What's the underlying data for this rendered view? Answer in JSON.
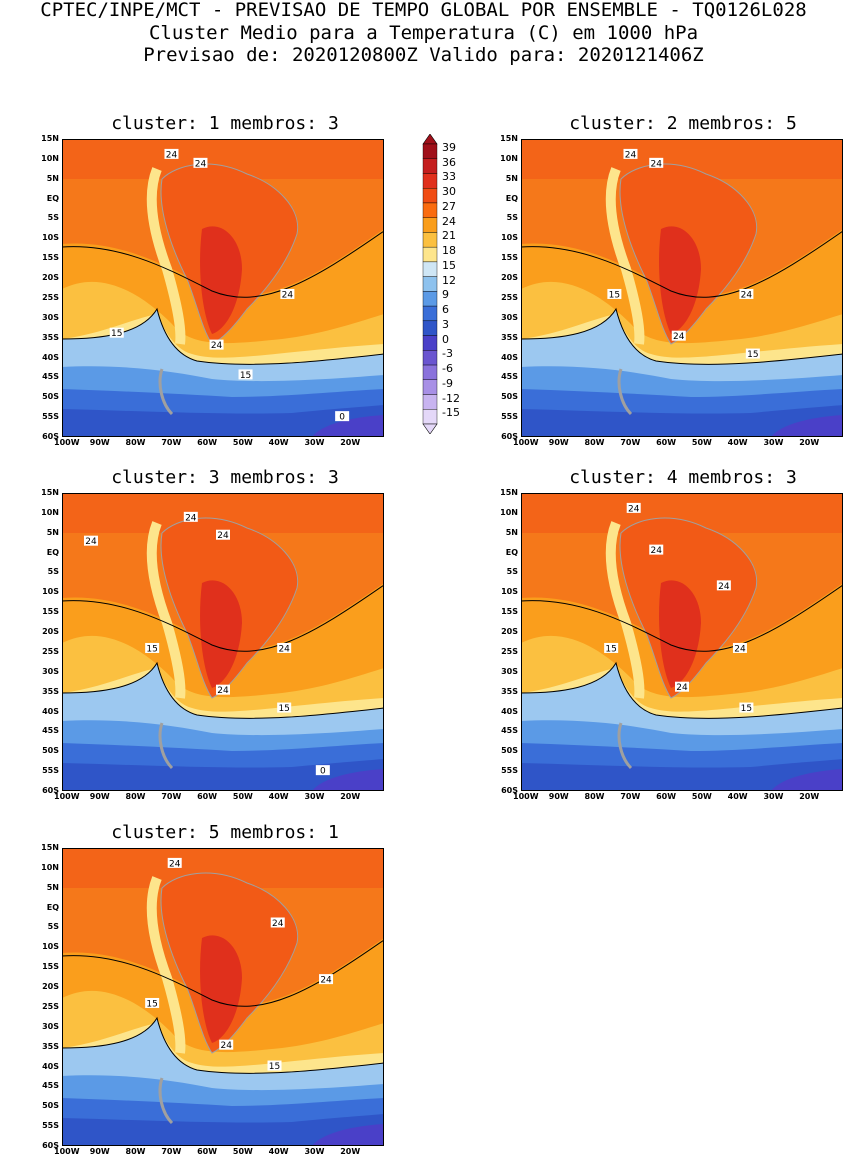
{
  "header": {
    "line1": "CPTEC/INPE/MCT - PREVISAO DE TEMPO GLOBAL POR ENSEMBLE - TQ0126L028",
    "line2": "Cluster Medio para a Temperatura (C) em 1000 hPa",
    "line3": "Previsao de: 2020120800Z   Valido para: 2020121406Z"
  },
  "axes": {
    "lat_labels": [
      "15N",
      "10N",
      "5N",
      "EQ",
      "5S",
      "10S",
      "15S",
      "20S",
      "25S",
      "30S",
      "35S",
      "40S",
      "45S",
      "50S",
      "55S",
      "60S"
    ],
    "lon_labels": [
      "100W",
      "90W",
      "80W",
      "70W",
      "60W",
      "50W",
      "40W",
      "30W",
      "20W"
    ]
  },
  "legend": {
    "values": [
      "39",
      "36",
      "33",
      "30",
      "27",
      "24",
      "21",
      "18",
      "15",
      "12",
      "9",
      "6",
      "3",
      "0",
      "-3",
      "-6",
      "-9",
      "-12",
      "-15"
    ],
    "colors": [
      "#a0101a",
      "#c41e1e",
      "#e0301c",
      "#f04c14",
      "#fa6c10",
      "#fa9e1c",
      "#fbc040",
      "#fde58c",
      "#cfe6f5",
      "#8ec2ee",
      "#5b9ae6",
      "#3a6ed8",
      "#2f55c8",
      "#4a40c8",
      "#6a55d0",
      "#8a72dc",
      "#a890e6",
      "#c8b4f0",
      "#e4d8f8"
    ]
  },
  "panels": [
    {
      "title": "cluster: 1   membros: 3",
      "contour_labels": [
        "24",
        "24",
        "24",
        "24",
        "15",
        "15",
        "0"
      ]
    },
    {
      "title": "cluster: 2   membros: 5",
      "contour_labels": [
        "24",
        "24",
        "24",
        "24",
        "15",
        "15"
      ]
    },
    {
      "title": "cluster: 3   membros: 3",
      "contour_labels": [
        "24",
        "24",
        "24",
        "24",
        "24",
        "15",
        "15",
        "0"
      ]
    },
    {
      "title": "cluster: 4   membros: 3",
      "contour_labels": [
        "24",
        "24",
        "24",
        "24",
        "24",
        "15",
        "15"
      ]
    },
    {
      "title": "cluster: 5   membros: 1",
      "contour_labels": [
        "24",
        "24",
        "24",
        "24",
        "15",
        "15"
      ]
    }
  ]
}
